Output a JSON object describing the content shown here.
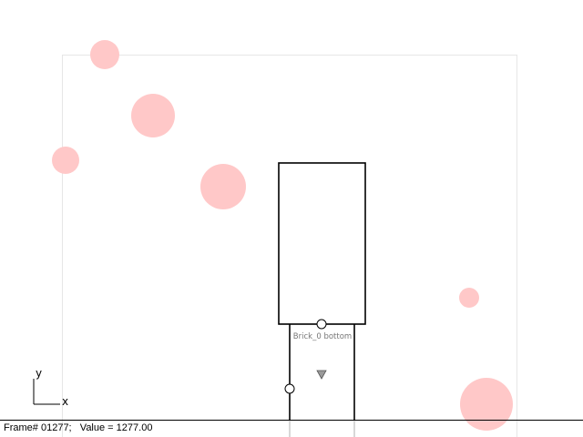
{
  "viewport": {
    "axis": {
      "y_label": "y",
      "x_label": "x"
    },
    "brick": {
      "label": "Brick_0 bottom"
    }
  },
  "status": {
    "frame_label": "Frame#",
    "frame_number": "01277;",
    "value_label": "Value =",
    "value": "1277.00"
  },
  "colors": {
    "circle_fill": "#ffc8c8",
    "bounds_stroke": "#e6e6e6",
    "line": "#000000"
  }
}
